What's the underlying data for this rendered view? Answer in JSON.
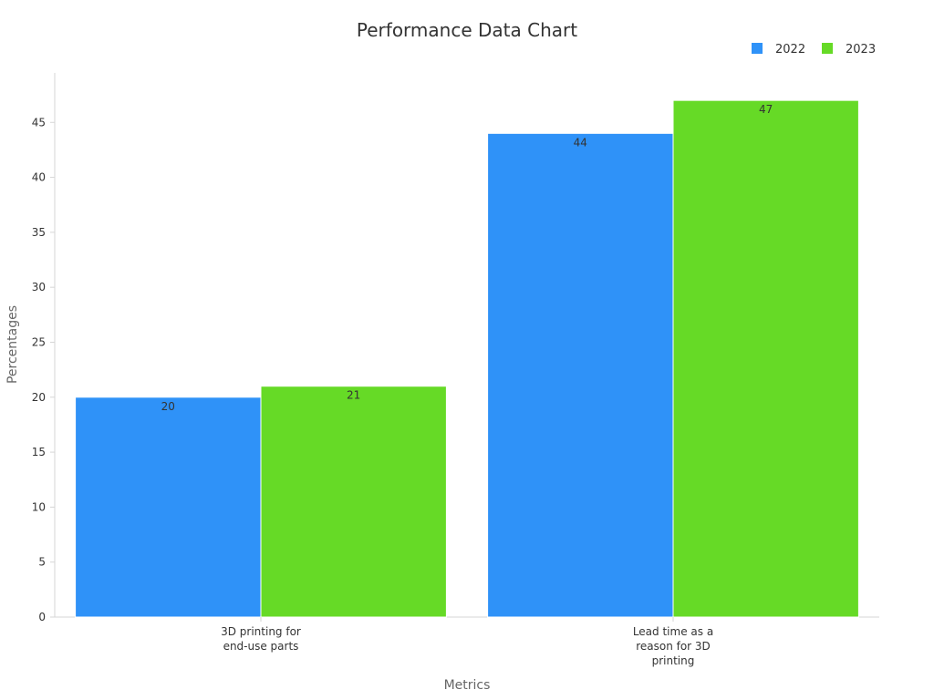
{
  "chart_data": {
    "type": "bar",
    "title": "Performance Data Chart",
    "xlabel": "Metrics",
    "ylabel": "Percentages",
    "categories": [
      "3D printing for end-use parts",
      "Lead time as a reason for 3D printing"
    ],
    "category_lines": [
      [
        "3D printing for",
        "end-use parts"
      ],
      [
        "Lead time as a",
        "reason for 3D",
        "printing"
      ]
    ],
    "series": [
      {
        "name": "2022",
        "values": [
          20,
          44
        ],
        "color": "#2f92f8"
      },
      {
        "name": "2023",
        "values": [
          21,
          47
        ],
        "color": "#66da26"
      }
    ],
    "ylim": [
      0,
      49.5
    ],
    "yticks": [
      0,
      5,
      10,
      15,
      20,
      25,
      30,
      35,
      40,
      45
    ],
    "legend_position": "top-right",
    "grid": false
  }
}
